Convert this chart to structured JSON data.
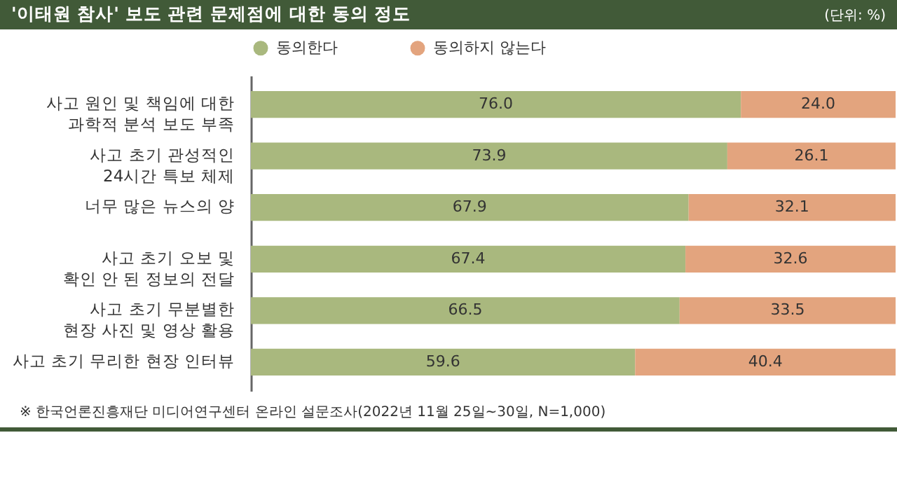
{
  "chart_data": {
    "type": "bar",
    "orientation": "horizontal",
    "stacked": true,
    "title": "'이태원 참사' 보도 관련 문제점에 대한 동의 정도",
    "subtitle": "(단위: %)",
    "annotations": [
      "※ 한국언론진흥재단 미디어연구센터 온라인 설문조사(2022년 11월 25일~30일, N=1,000)"
    ],
    "categories": [
      "사고 원인 및 책임에 대한 과학적 분석 보도 부족",
      "사고 초기 관성적인 24시간 특보 체제",
      "너무 많은 뉴스의 양",
      "사고 초기 오보 및 확인 안 된 정보의 전달",
      "사고 초기 무분별한 현장 사진 및 영상 활용",
      "사고 초기 무리한 현장 인터뷰"
    ],
    "series": [
      {
        "name": "동의한다",
        "color": "#a9b87e",
        "values": [
          76.0,
          73.9,
          67.9,
          67.4,
          66.5,
          59.6
        ],
        "value_labels": [
          "76.0",
          "73.9",
          "67.9",
          "67.4",
          "66.5",
          "59.6"
        ]
      },
      {
        "name": "동의하지 않는다",
        "color": "#e3a47e",
        "values": [
          24.0,
          26.1,
          32.1,
          32.6,
          33.5,
          40.4
        ],
        "value_labels": [
          "24.0",
          "26.1",
          "32.1",
          "32.6",
          "33.5",
          "40.4"
        ]
      }
    ],
    "xlim": [
      0,
      100
    ],
    "legend": "top",
    "tick_labels": "y",
    "grid": false
  }
}
